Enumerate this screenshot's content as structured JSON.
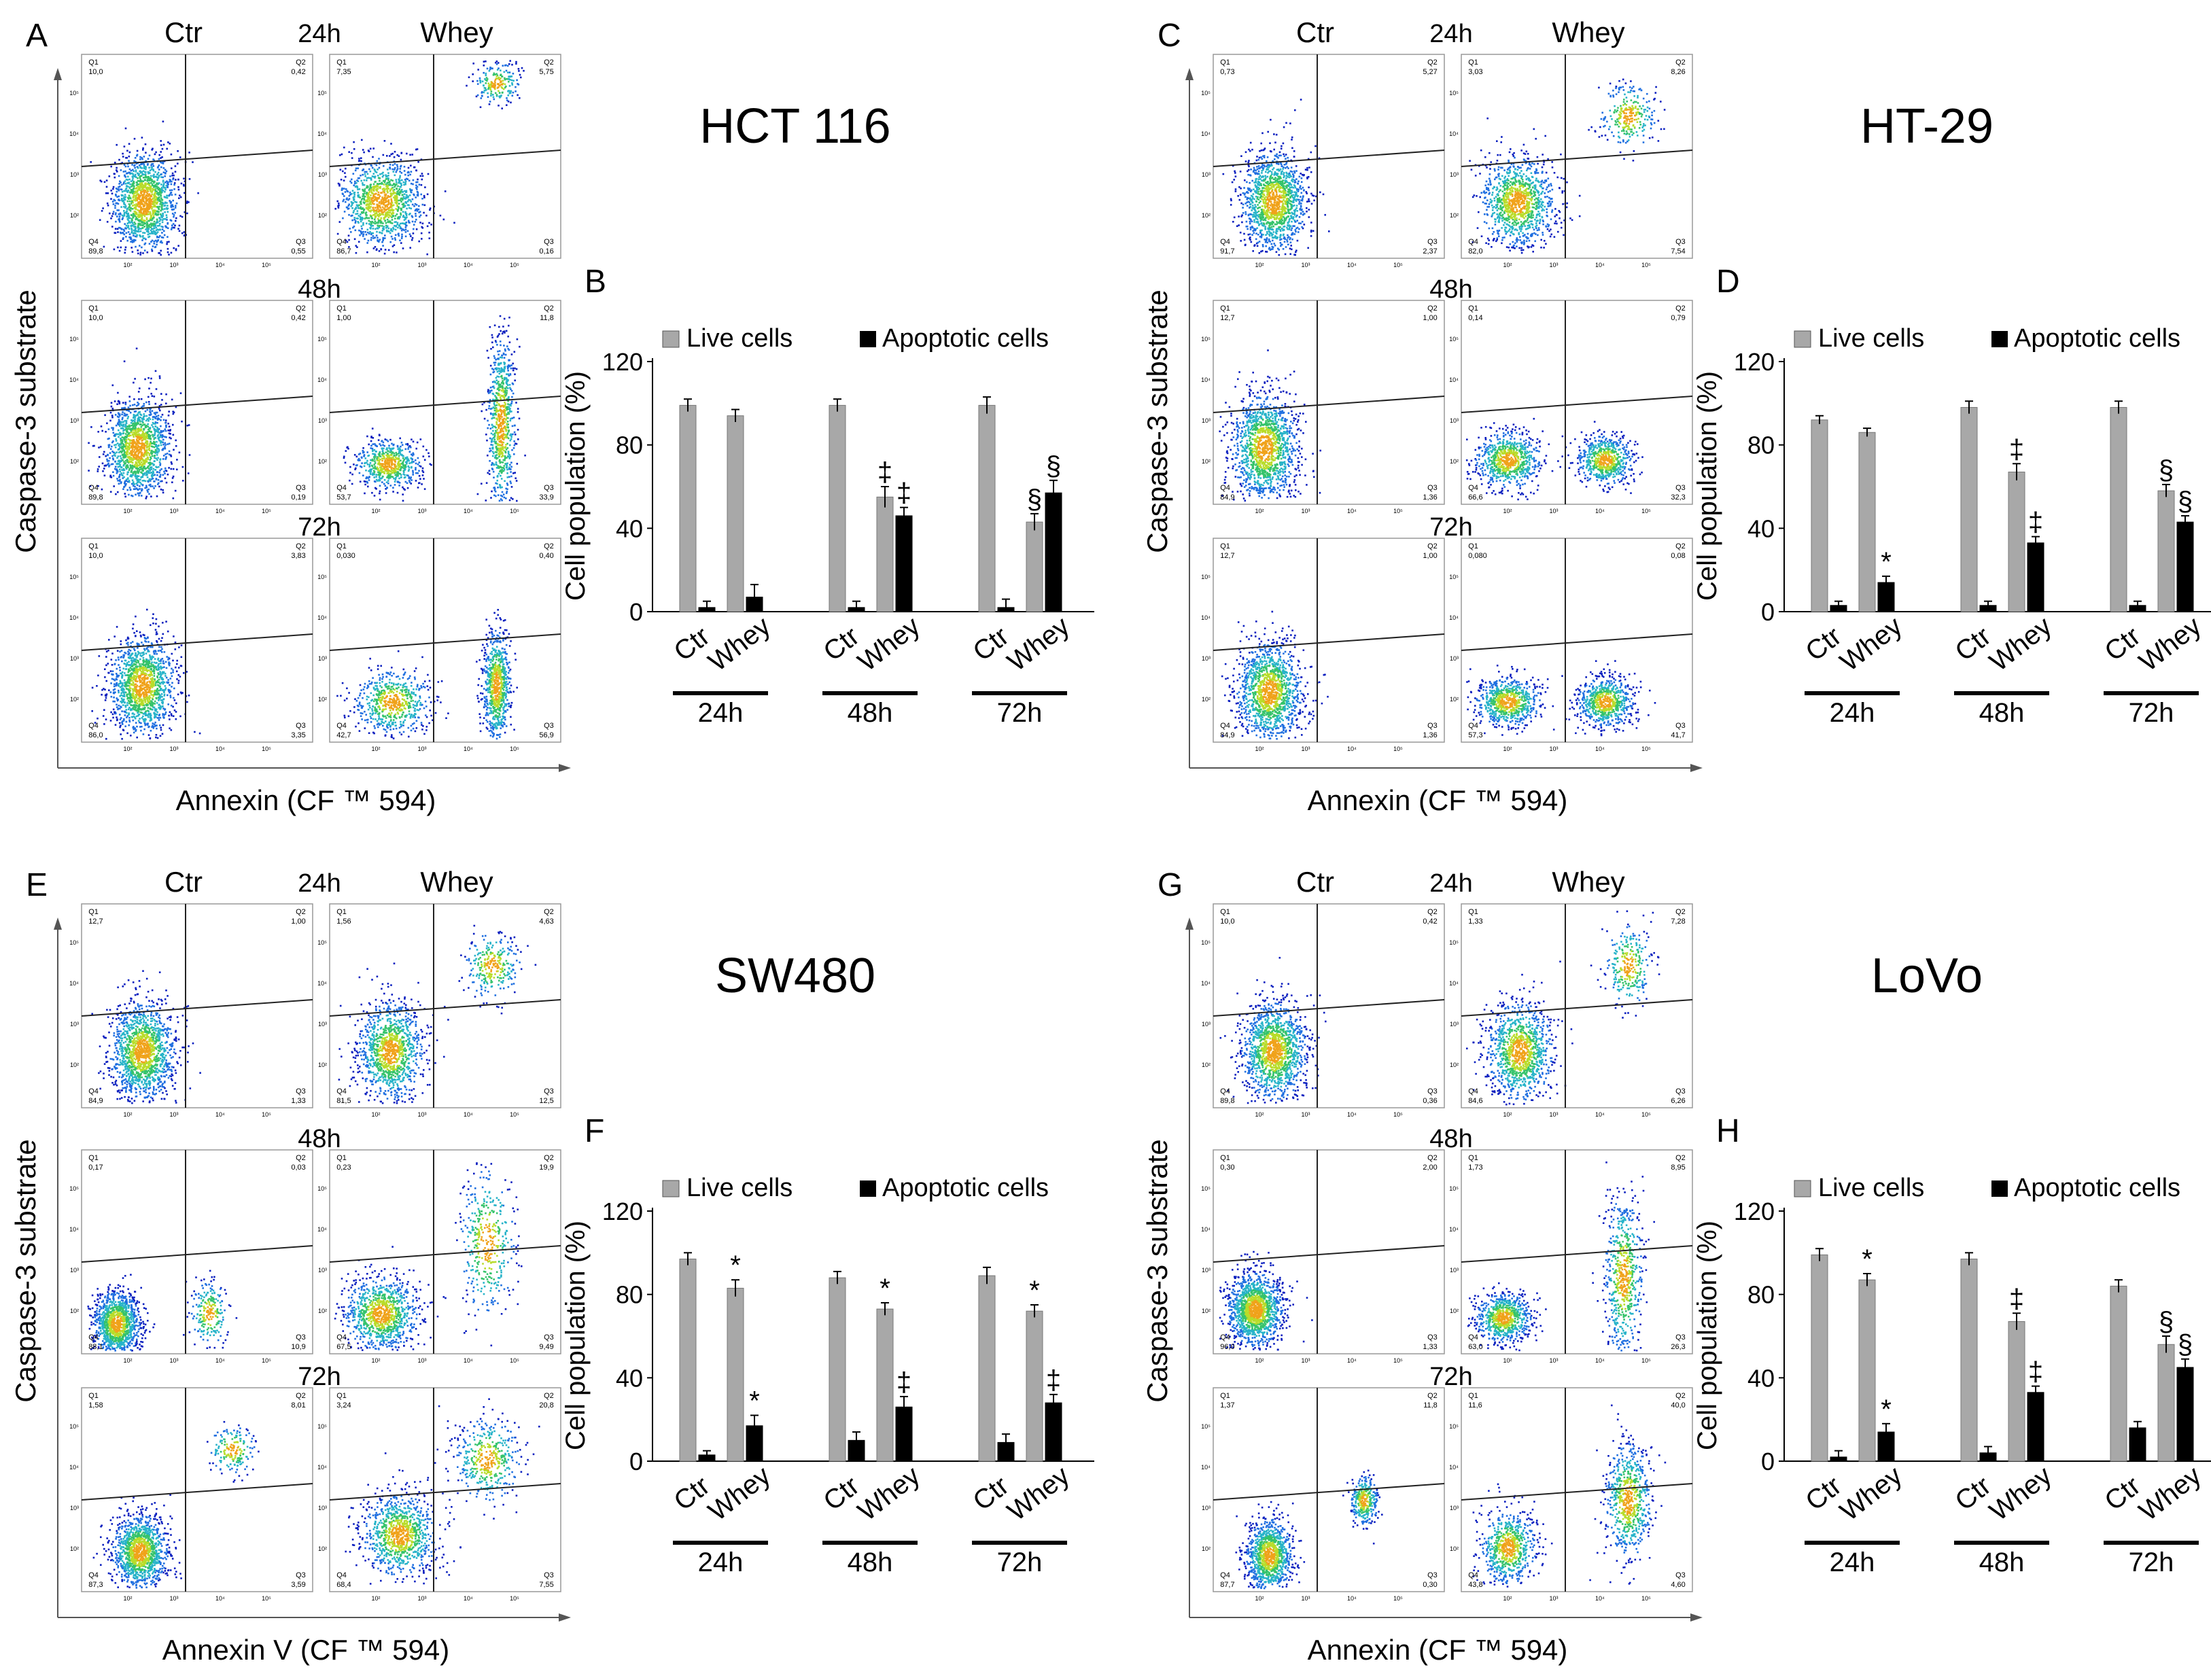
{
  "colors": {
    "live": "#a8a8a8",
    "apoptotic": "#000000",
    "gate": "#222222",
    "frame": "#999999"
  },
  "flow_labels": {
    "ctr": "Ctr",
    "whey": "Whey",
    "tp": [
      "24h",
      "48h",
      "72h"
    ],
    "ylabel": "Caspase-3 substrate",
    "xlabel": "Annexin (CF ™ 594)",
    "xlabel_v": "Annexin V (CF ™ 594)",
    "q": [
      "Q1",
      "Q2",
      "Q3",
      "Q4"
    ],
    "decades": [
      "10²",
      "10³",
      "10⁴",
      "10⁵"
    ]
  },
  "panels": [
    {
      "letter": "A",
      "bar_letter": "B",
      "title": "HCT 116",
      "xlabel_key": "xlabel",
      "quadrants": [
        [
          [
            "10,0",
            "0,42",
            "0,55",
            "89,8"
          ],
          [
            "7,35",
            "5,75",
            "0,16",
            "86,7"
          ]
        ],
        [
          [
            "10,0",
            "0,42",
            "0,19",
            "89,8"
          ],
          [
            "1,00",
            "11,8",
            "33,9",
            "53,7"
          ]
        ],
        [
          [
            "10,0",
            "3,83",
            "3,35",
            "86,0"
          ],
          [
            "0,030",
            "0,40",
            "56,9",
            "42,7"
          ]
        ]
      ]
    },
    {
      "letter": "C",
      "bar_letter": "D",
      "title": "HT-29",
      "xlabel_key": "xlabel",
      "quadrants": [
        [
          [
            "0,73",
            "5,27",
            "2,37",
            "91,7"
          ],
          [
            "3,03",
            "8,26",
            "7,54",
            "82,0"
          ]
        ],
        [
          [
            "12,7",
            "1,00",
            "1,36",
            "84,9"
          ],
          [
            "0,14",
            "0,79",
            "32,3",
            "66,6"
          ]
        ],
        [
          [
            "12,7",
            "1,00",
            "1,36",
            "84,9"
          ],
          [
            "0,080",
            "0,08",
            "41,7",
            "57,3"
          ]
        ]
      ]
    },
    {
      "letter": "E",
      "bar_letter": "F",
      "title": "SW480",
      "xlabel_key": "xlabel_v",
      "quadrants": [
        [
          [
            "12,7",
            "1,00",
            "1,33",
            "84,9"
          ],
          [
            "1,56",
            "4,63",
            "12,5",
            "81,5"
          ]
        ],
        [
          [
            "0,17",
            "0,03",
            "10,9",
            "88,1"
          ],
          [
            "0,23",
            "19,9",
            "9,49",
            "67,5"
          ]
        ],
        [
          [
            "1,58",
            "8,01",
            "3,59",
            "87,3"
          ],
          [
            "3,24",
            "20,8",
            "7,55",
            "68,4"
          ]
        ]
      ]
    },
    {
      "letter": "G",
      "bar_letter": "H",
      "title": "LoVo",
      "xlabel_key": "xlabel",
      "quadrants": [
        [
          [
            "10,0",
            "0,42",
            "0,36",
            "89,8"
          ],
          [
            "1,33",
            "7,28",
            "6,26",
            "84,6"
          ]
        ],
        [
          [
            "0,30",
            "2,00",
            "1,33",
            "96,0"
          ],
          [
            "1,73",
            "8,95",
            "26,3",
            "63,0"
          ]
        ],
        [
          [
            "1,37",
            "11,8",
            "0,30",
            "87,7"
          ],
          [
            "11,6",
            "40,0",
            "4,60",
            "43,8"
          ]
        ]
      ]
    }
  ],
  "chart_data": [
    {
      "type": "bar",
      "panel": "B",
      "cell_line": "HCT 116",
      "ylabel": "Cell population (%)",
      "ylim": [
        0,
        120
      ],
      "yticks": [
        0,
        40,
        80,
        120
      ],
      "legend": [
        "Live cells",
        "Apoptotic cells"
      ],
      "groups": [
        "24h",
        "48h",
        "72h"
      ],
      "conditions": [
        "Ctr",
        "Whey"
      ],
      "series": [
        {
          "name": "Live cells",
          "values": [
            [
              99,
              94
            ],
            [
              99,
              55
            ],
            [
              99,
              43
            ]
          ],
          "errors": [
            [
              3,
              3
            ],
            [
              3,
              5
            ],
            [
              4,
              4
            ]
          ],
          "marks": [
            [
              "",
              ""
            ],
            [
              "",
              "‡"
            ],
            [
              "",
              "§"
            ]
          ]
        },
        {
          "name": "Apoptotic cells",
          "values": [
            [
              2,
              7
            ],
            [
              2,
              46
            ],
            [
              2,
              57
            ]
          ],
          "errors": [
            [
              3,
              6
            ],
            [
              3,
              4
            ],
            [
              4,
              6
            ]
          ],
          "marks": [
            [
              "",
              ""
            ],
            [
              "",
              "‡"
            ],
            [
              "",
              "§"
            ]
          ]
        }
      ]
    },
    {
      "type": "bar",
      "panel": "D",
      "cell_line": "HT-29",
      "ylabel": "Cell population (%)",
      "ylim": [
        0,
        120
      ],
      "yticks": [
        0,
        40,
        80,
        120
      ],
      "legend": [
        "Live cells",
        "Apoptotic cells"
      ],
      "groups": [
        "24h",
        "48h",
        "72h"
      ],
      "conditions": [
        "Ctr",
        "Whey"
      ],
      "series": [
        {
          "name": "Live cells",
          "values": [
            [
              92,
              86
            ],
            [
              98,
              67
            ],
            [
              98,
              58
            ]
          ],
          "errors": [
            [
              2,
              2
            ],
            [
              3,
              4
            ],
            [
              3,
              3
            ]
          ],
          "marks": [
            [
              "",
              ""
            ],
            [
              "",
              "‡"
            ],
            [
              "",
              "§"
            ]
          ]
        },
        {
          "name": "Apoptotic cells",
          "values": [
            [
              3,
              14
            ],
            [
              3,
              33
            ],
            [
              3,
              43
            ]
          ],
          "errors": [
            [
              2,
              3
            ],
            [
              2,
              3
            ],
            [
              2,
              3
            ]
          ],
          "marks": [
            [
              "",
              "*"
            ],
            [
              "",
              "‡"
            ],
            [
              "",
              "§"
            ]
          ]
        }
      ]
    },
    {
      "type": "bar",
      "panel": "F",
      "cell_line": "SW480",
      "ylabel": "Cell population (%)",
      "ylim": [
        0,
        120
      ],
      "yticks": [
        0,
        40,
        80,
        120
      ],
      "legend": [
        "Live cells",
        "Apoptotic cells"
      ],
      "groups": [
        "24h",
        "48h",
        "72h"
      ],
      "conditions": [
        "Ctr",
        "Whey"
      ],
      "series": [
        {
          "name": "Live cells",
          "values": [
            [
              97,
              83
            ],
            [
              88,
              73
            ],
            [
              89,
              72
            ]
          ],
          "errors": [
            [
              3,
              4
            ],
            [
              3,
              3
            ],
            [
              4,
              3
            ]
          ],
          "marks": [
            [
              "",
              "*"
            ],
            [
              "",
              "*"
            ],
            [
              "",
              "*"
            ]
          ]
        },
        {
          "name": "Apoptotic cells",
          "values": [
            [
              3,
              17
            ],
            [
              10,
              26
            ],
            [
              9,
              28
            ]
          ],
          "errors": [
            [
              2,
              5
            ],
            [
              4,
              5
            ],
            [
              4,
              4
            ]
          ],
          "marks": [
            [
              "",
              "*"
            ],
            [
              "",
              "‡"
            ],
            [
              "",
              "‡"
            ]
          ]
        }
      ]
    },
    {
      "type": "bar",
      "panel": "H",
      "cell_line": "LoVo",
      "ylabel": "Cell population (%)",
      "ylim": [
        0,
        120
      ],
      "yticks": [
        0,
        40,
        80,
        120
      ],
      "legend": [
        "Live cells",
        "Apoptotic cells"
      ],
      "groups": [
        "24h",
        "48h",
        "72h"
      ],
      "conditions": [
        "Ctr",
        "Whey"
      ],
      "series": [
        {
          "name": "Live cells",
          "values": [
            [
              99,
              87
            ],
            [
              97,
              67
            ],
            [
              84,
              56
            ]
          ],
          "errors": [
            [
              3,
              3
            ],
            [
              3,
              4
            ],
            [
              3,
              4
            ]
          ],
          "marks": [
            [
              "",
              "*"
            ],
            [
              "",
              "‡"
            ],
            [
              "",
              "§"
            ]
          ]
        },
        {
          "name": "Apoptotic cells",
          "values": [
            [
              2,
              14
            ],
            [
              4,
              33
            ],
            [
              16,
              45
            ]
          ],
          "errors": [
            [
              3,
              4
            ],
            [
              3,
              3
            ],
            [
              3,
              4
            ]
          ],
          "marks": [
            [
              "",
              "*"
            ],
            [
              "",
              "‡"
            ],
            [
              "",
              "§"
            ]
          ]
        }
      ]
    }
  ]
}
